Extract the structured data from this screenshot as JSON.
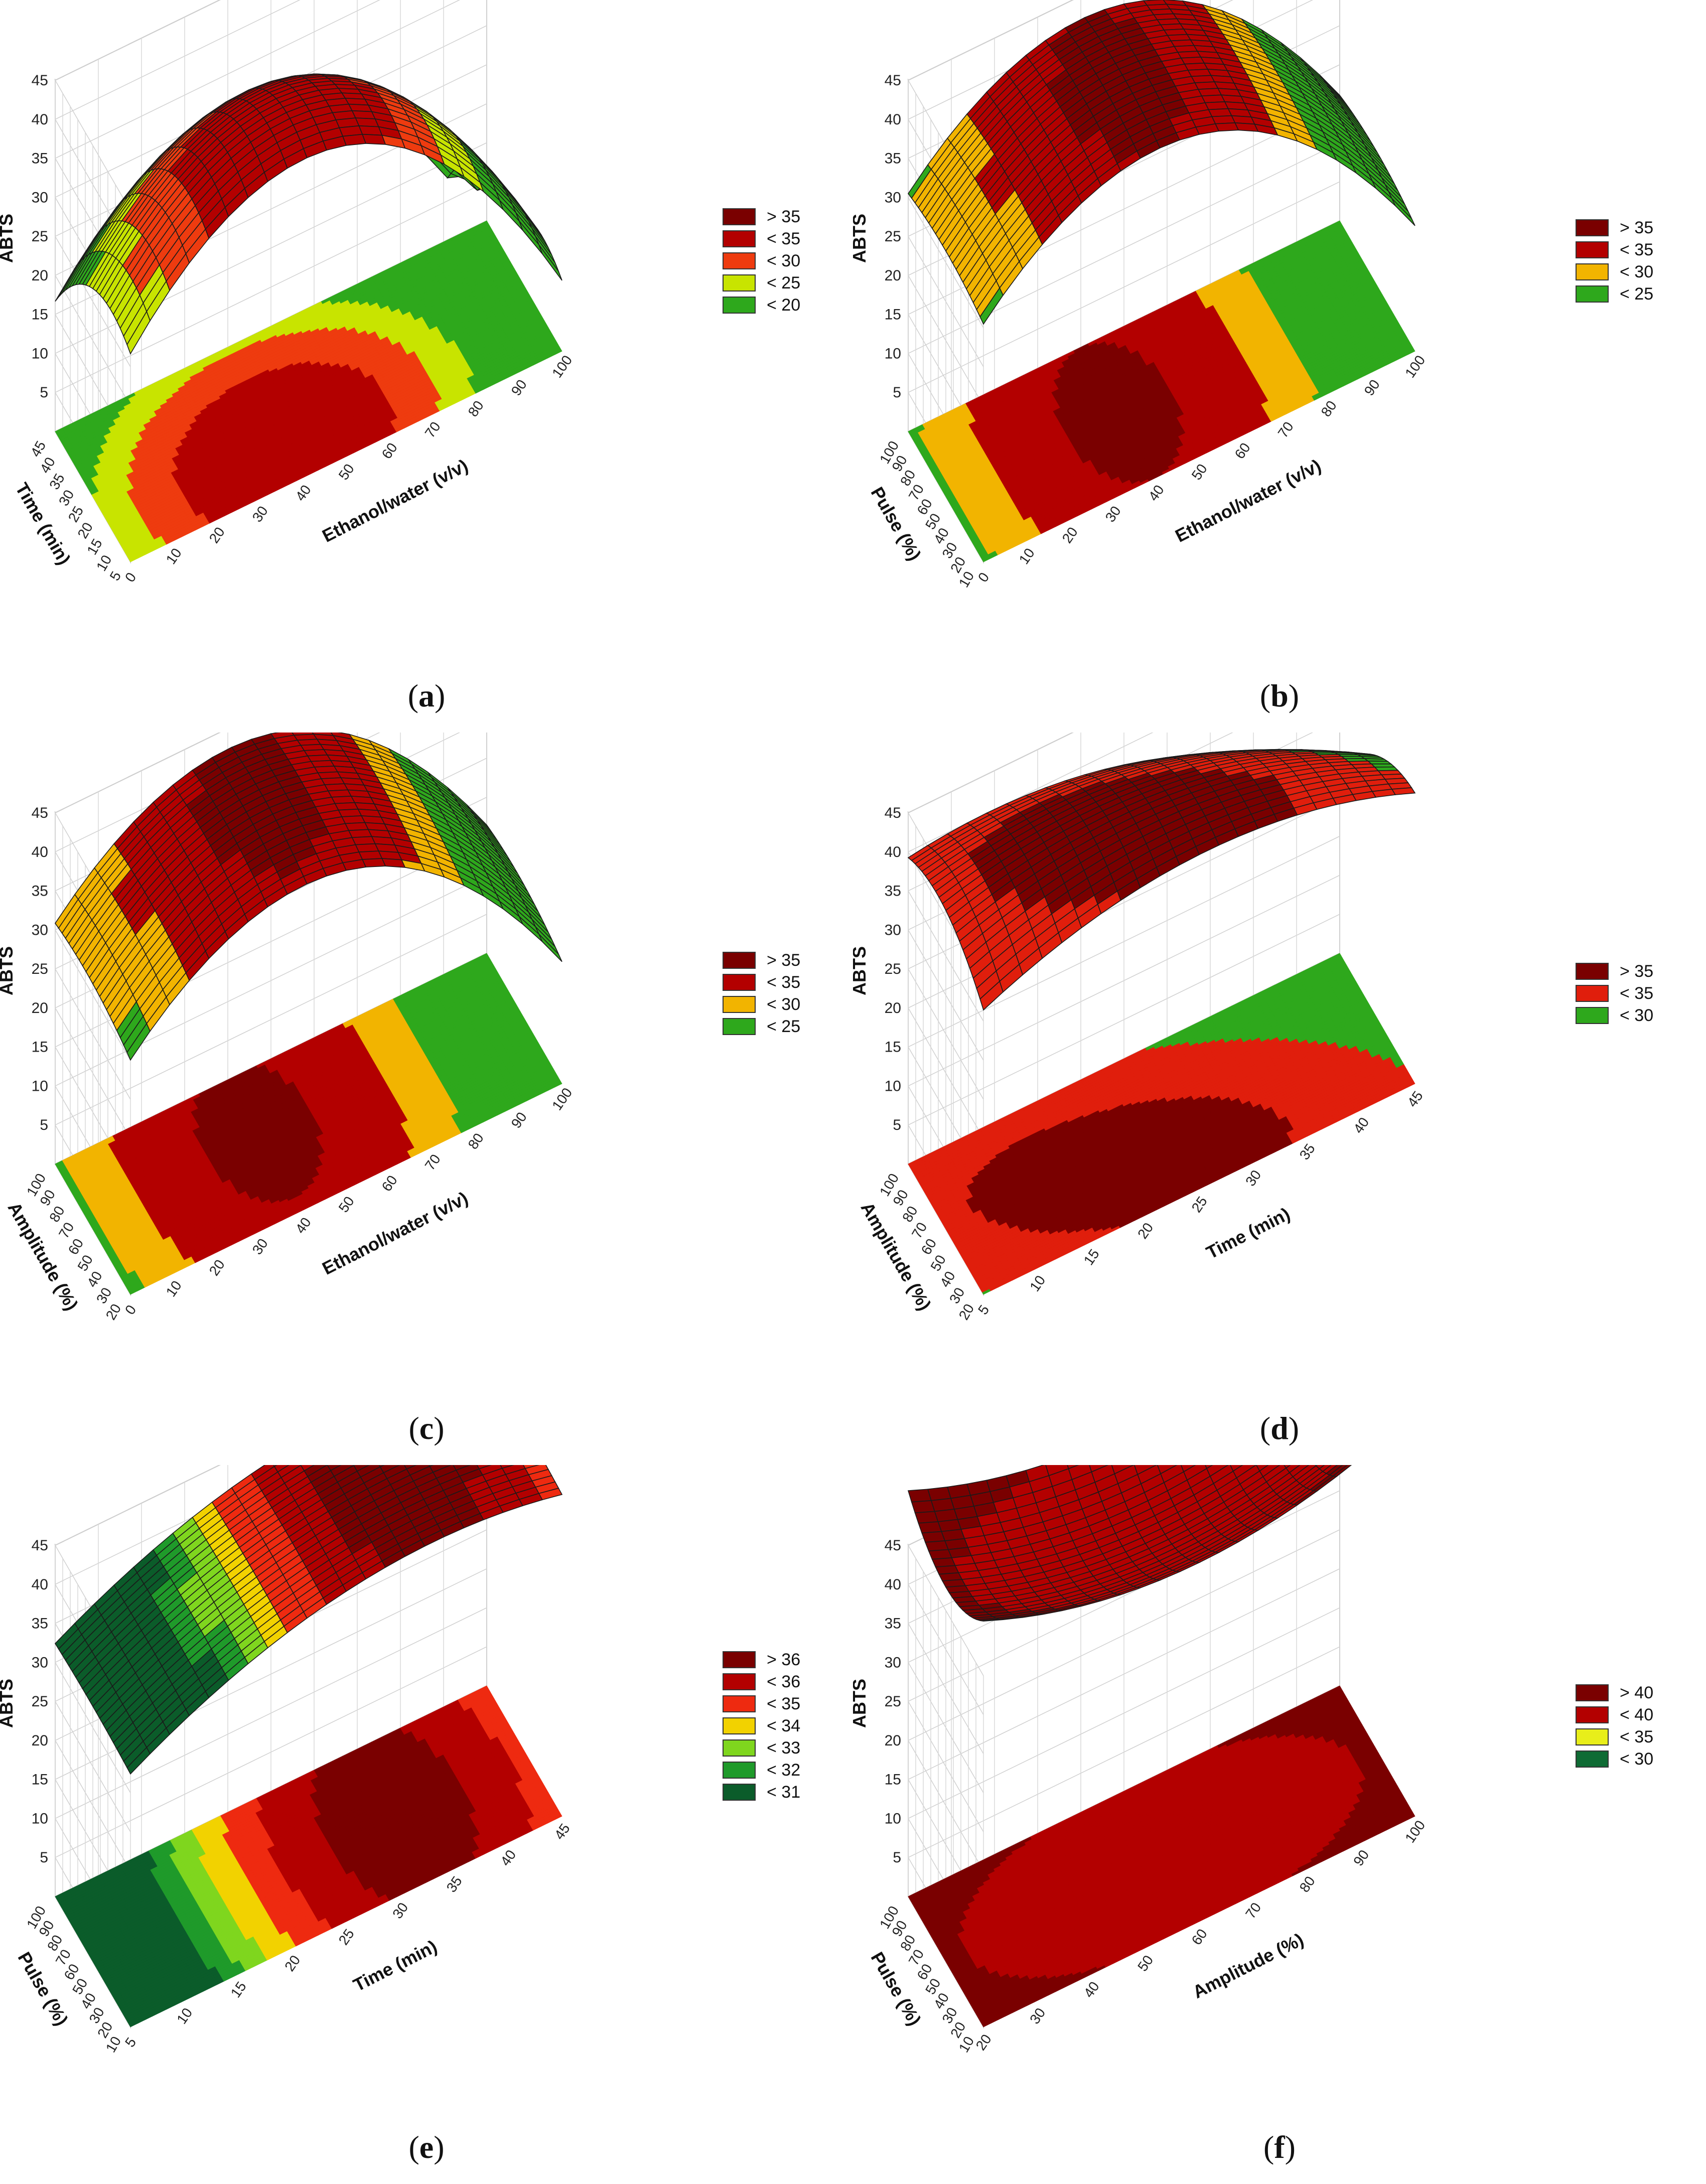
{
  "chart_data": [
    {
      "type": "surface",
      "caption": "a",
      "zlabel": "ABTS",
      "xlabel": "Ethanol/water (v/v)",
      "ylabel": "Time (min)",
      "x_ticks": [
        "0",
        "10",
        "20",
        "30",
        "40",
        "50",
        "60",
        "70",
        "80",
        "90",
        "100"
      ],
      "y_ticks": [
        "5",
        "10",
        "15",
        "20",
        "25",
        "30",
        "35",
        "40",
        "45"
      ],
      "z_ticks": [
        "5",
        "10",
        "15",
        "20",
        "25",
        "30",
        "35",
        "40",
        "45"
      ],
      "zlim": [
        0,
        45
      ],
      "surface": {
        "base": 35,
        "x_peak": 40,
        "x_quad": -22,
        "y_peak": 25,
        "y_quad": -5,
        "xy": 0
      },
      "legend": [
        {
          "label": "> 35",
          "color": "#7a0000"
        },
        {
          "label": "< 35",
          "color": "#b30000"
        },
        {
          "label": "< 30",
          "color": "#ee3b0f"
        },
        {
          "label": "< 25",
          "color": "#c8e400"
        },
        {
          "label": "< 20",
          "color": "#2ea81c"
        }
      ]
    },
    {
      "type": "surface",
      "caption": "b",
      "zlabel": "ABTS",
      "xlabel": "Ethanol/water (v/v)",
      "ylabel": "Pulse (%)",
      "x_ticks": [
        "0",
        "10",
        "20",
        "30",
        "40",
        "50",
        "60",
        "70",
        "80",
        "90",
        "100"
      ],
      "y_ticks": [
        "10",
        "20",
        "30",
        "40",
        "50",
        "60",
        "70",
        "80",
        "90",
        "100"
      ],
      "z_ticks": [
        "5",
        "10",
        "15",
        "20",
        "25",
        "30",
        "35",
        "40",
        "45"
      ],
      "zlim": [
        0,
        45
      ],
      "surface": {
        "base": 36,
        "x_peak": 40,
        "x_quad": -18,
        "y_peak": 50,
        "y_quad": -1,
        "xy": 0
      },
      "legend": [
        {
          "label": "> 35",
          "color": "#7a0000"
        },
        {
          "label": "< 35",
          "color": "#b30000"
        },
        {
          "label": "< 30",
          "color": "#f2b400"
        },
        {
          "label": "< 25",
          "color": "#2ea81c"
        }
      ]
    },
    {
      "type": "surface",
      "caption": "c",
      "zlabel": "ABTS",
      "xlabel": "Ethanol/water (v/v)",
      "ylabel": "Amplitude (%)",
      "x_ticks": [
        "0",
        "10",
        "20",
        "30",
        "40",
        "50",
        "60",
        "70",
        "80",
        "90",
        "100"
      ],
      "y_ticks": [
        "20",
        "30",
        "40",
        "50",
        "60",
        "70",
        "80",
        "90",
        "100"
      ],
      "z_ticks": [
        "5",
        "10",
        "15",
        "20",
        "25",
        "30",
        "35",
        "40",
        "45"
      ],
      "zlim": [
        0,
        45
      ],
      "surface": {
        "base": 36,
        "x_peak": 40,
        "x_quad": -18,
        "y_peak": 60,
        "y_quad": -1,
        "xy": 0
      },
      "legend": [
        {
          "label": "> 35",
          "color": "#7a0000"
        },
        {
          "label": "< 35",
          "color": "#b30000"
        },
        {
          "label": "< 30",
          "color": "#f2b400"
        },
        {
          "label": "< 25",
          "color": "#2ea81c"
        }
      ]
    },
    {
      "type": "surface",
      "caption": "d",
      "zlabel": "ABTS",
      "xlabel": "Time (min)",
      "ylabel": "Amplitude (%)",
      "x_ticks": [
        "5",
        "10",
        "15",
        "20",
        "25",
        "30",
        "35",
        "40",
        "45"
      ],
      "y_ticks": [
        "20",
        "30",
        "40",
        "50",
        "60",
        "70",
        "80",
        "90",
        "100"
      ],
      "z_ticks": [
        "5",
        "10",
        "15",
        "20",
        "25",
        "30",
        "35",
        "40",
        "45"
      ],
      "zlim": [
        0,
        45
      ],
      "surface": {
        "base": 37,
        "x_peak": 40,
        "x_quad": -6,
        "y_peak": 35,
        "y_quad": -3,
        "xy": -4
      },
      "legend": [
        {
          "label": "> 35",
          "color": "#7a0000"
        },
        {
          "label": "< 35",
          "color": "#e01e0c"
        },
        {
          "label": "< 30",
          "color": "#2ea81c"
        }
      ]
    },
    {
      "type": "surface",
      "caption": "e",
      "zlabel": "ABTS",
      "xlabel": "Time (min)",
      "ylabel": "Pulse (%)",
      "x_ticks": [
        "5",
        "10",
        "15",
        "20",
        "25",
        "30",
        "35",
        "40",
        "45"
      ],
      "y_ticks": [
        "10",
        "20",
        "30",
        "40",
        "50",
        "60",
        "70",
        "80",
        "90",
        "100"
      ],
      "z_ticks": [
        "5",
        "10",
        "15",
        "20",
        "25",
        "30",
        "35",
        "40",
        "45"
      ],
      "zlim": [
        0,
        45
      ],
      "surface": {
        "base": 36.5,
        "x_peak": 70,
        "x_quad": -5.5,
        "y_peak": 50,
        "y_quad": -0.3,
        "xy": 0
      },
      "legend": [
        {
          "label": "> 36",
          "color": "#7a0000"
        },
        {
          "label": "< 36",
          "color": "#b30000"
        },
        {
          "label": "< 35",
          "color": "#ee2a10"
        },
        {
          "label": "< 34",
          "color": "#f2d200"
        },
        {
          "label": "< 33",
          "color": "#7fd61e"
        },
        {
          "label": "< 32",
          "color": "#1f9a2a"
        },
        {
          "label": "< 31",
          "color": "#0b5c2a"
        }
      ]
    },
    {
      "type": "surface",
      "caption": "f",
      "zlabel": "ABTS",
      "xlabel": "Amplitude (%)",
      "ylabel": "Pulse (%)",
      "x_ticks": [
        "20",
        "30",
        "40",
        "50",
        "60",
        "70",
        "80",
        "90",
        "100"
      ],
      "y_ticks": [
        "10",
        "20",
        "30",
        "40",
        "50",
        "60",
        "70",
        "80",
        "90",
        "100"
      ],
      "z_ticks": [
        "5",
        "10",
        "15",
        "20",
        "25",
        "30",
        "35",
        "40",
        "45"
      ],
      "zlim": [
        0,
        45
      ],
      "surface": {
        "base": 35,
        "x_peak": 50,
        "x_quad": 6,
        "y_peak": 50,
        "y_quad": 4,
        "xy": 0
      },
      "legend": [
        {
          "label": "> 40",
          "color": "#7a0000"
        },
        {
          "label": "< 40",
          "color": "#b30000"
        },
        {
          "label": "< 35",
          "color": "#e8ee1a"
        },
        {
          "label": "< 30",
          "color": "#0f6b34"
        }
      ]
    }
  ]
}
